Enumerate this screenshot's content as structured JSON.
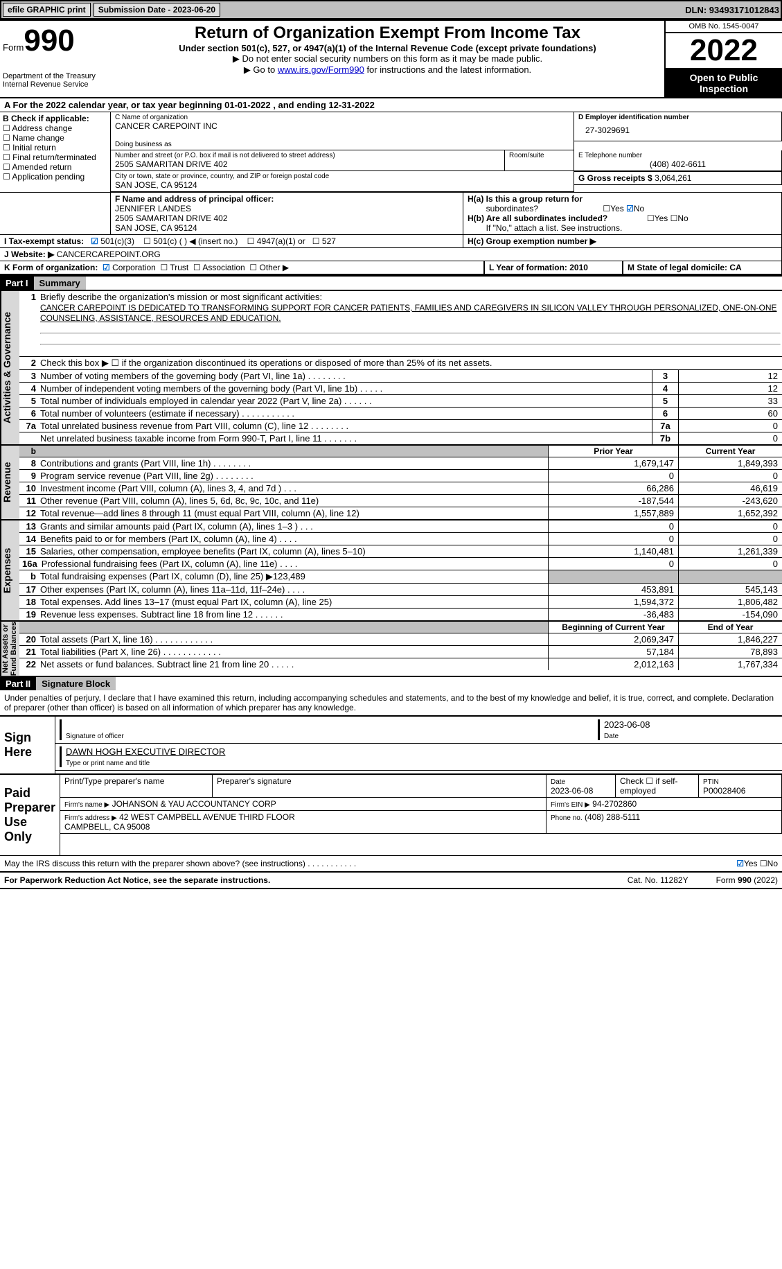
{
  "topbar": {
    "efile": "efile GRAPHIC print",
    "subdate_lbl": "Submission Date - 2023-06-20",
    "dln_lbl": "DLN: 93493171012843"
  },
  "header": {
    "form_word": "Form",
    "form_num": "990",
    "title": "Return of Organization Exempt From Income Tax",
    "under": "Under section 501(c), 527, or 4947(a)(1) of the Internal Revenue Code (except private foundations)",
    "ssn": "▶ Do not enter social security numbers on this form as it may be made public.",
    "goto_pre": "▶ Go to ",
    "goto_link": "www.irs.gov/Form990",
    "goto_post": " for instructions and the latest information.",
    "dept": "Department of the Treasury\nInternal Revenue Service",
    "omb": "OMB No. 1545-0047",
    "year": "2022",
    "public": "Open to Public Inspection"
  },
  "a": {
    "text": "A  For the 2022 calendar year, or tax year beginning 01-01-2022    , and ending 12-31-2022"
  },
  "b": {
    "hdr": "B Check if applicable:",
    "items": [
      "Address change",
      "Name change",
      "Initial return",
      "Final return/terminated",
      "Amended return",
      "Application pending"
    ]
  },
  "c": {
    "name_lbl": "C Name of organization",
    "name": "CANCER CAREPOINT INC",
    "dba_lbl": "Doing business as",
    "dba": "",
    "addr_lbl": "Number and street (or P.O. box if mail is not delivered to street address)",
    "room_lbl": "Room/suite",
    "addr": "2505 SAMARITAN DRIVE 402",
    "city_lbl": "City or town, state or province, country, and ZIP or foreign postal code",
    "city": "SAN JOSE, CA  95124"
  },
  "d": {
    "lbl": "D Employer identification number",
    "val": "27-3029691"
  },
  "e": {
    "lbl": "E Telephone number",
    "val": "(408) 402-6611"
  },
  "g": {
    "lbl": "G Gross receipts $",
    "val": "3,064,261"
  },
  "f": {
    "lbl": "F  Name and address of principal officer:",
    "name": "JENNIFER LANDES",
    "addr1": "2505 SAMARITAN DRIVE 402",
    "addr2": "SAN JOSE, CA  95124"
  },
  "h": {
    "a": "H(a)  Is this a group return for",
    "sub": "subordinates?",
    "b": "H(b)  Are all subordinates included?",
    "note": "If \"No,\" attach a list. See instructions.",
    "c": "H(c)  Group exemption number ▶"
  },
  "i": {
    "lbl": "I    Tax-exempt status:",
    "c3": "501(c)(3)",
    "c": "501(c) (  ) ◀ (insert no.)",
    "a1": "4947(a)(1) or",
    "s527": "527"
  },
  "j": {
    "lbl": "J   Website: ▶ ",
    "val": "CANCERCAREPOINT.ORG"
  },
  "k": {
    "lbl": "K Form of organization:",
    "opts": [
      "Corporation",
      "Trust",
      "Association",
      "Other ▶"
    ]
  },
  "l": {
    "lbl": "L Year of formation: 2010"
  },
  "m": {
    "lbl": "M State of legal domicile: CA"
  },
  "p1": {
    "part": "Part I",
    "title": "Summary"
  },
  "s1": {
    "label": "Activities & Governance",
    "r1_lbl": "Briefly describe the organization's mission or most significant activities:",
    "mission": "CANCER CAREPOINT IS DEDICATED TO TRANSFORMING SUPPORT FOR CANCER PATIENTS, FAMILIES AND CAREGIVERS IN SILICON VALLEY THROUGH PERSONALIZED, ONE-ON-ONE COUNSELING, ASSISTANCE, RESOURCES AND EDUCATION.",
    "r2": "Check this box ▶ ☐  if the organization discontinued its operations or disposed of more than 25% of its net assets.",
    "rows": [
      {
        "n": "3",
        "d": "Number of voting members of the governing body (Part VI, line 1a)   .     .     .     .     .     .     .     .",
        "b": "3",
        "v": "12"
      },
      {
        "n": "4",
        "d": "Number of independent voting members of the governing body (Part VI, line 1b)   .     .     .     .     .",
        "b": "4",
        "v": "12"
      },
      {
        "n": "5",
        "d": "Total number of individuals employed in calendar year 2022 (Part V, line 2a)   .     .     .     .     .     .",
        "b": "5",
        "v": "33"
      },
      {
        "n": "6",
        "d": "Total number of volunteers (estimate if necessary)     .     .     .     .     .     .     .     .     .     .     .",
        "b": "6",
        "v": "60"
      },
      {
        "n": "7a",
        "d": "Total unrelated business revenue from Part VIII, column (C), line 12   .     .     .     .     .     .     .     .",
        "b": "7a",
        "v": "0"
      },
      {
        "n": "",
        "d": "Net unrelated business taxable income from Form 990-T, Part I, line 11   .     .     .     .     .     .     .",
        "b": "7b",
        "v": "0"
      }
    ]
  },
  "colhdr": {
    "py": "Prior Year",
    "cy": "Current Year",
    "bcy": "Beginning of Current Year",
    "eoy": "End of Year"
  },
  "rev": {
    "label": "Revenue",
    "rows": [
      {
        "n": "8",
        "d": "Contributions and grants (Part VIII, line 1h)   .     .     .     .     .     .     .     .",
        "py": "1,679,147",
        "cy": "1,849,393"
      },
      {
        "n": "9",
        "d": "Program service revenue (Part VIII, line 2g)   .     .     .     .     .     .     .     .",
        "py": "0",
        "cy": "0"
      },
      {
        "n": "10",
        "d": "Investment income (Part VIII, column (A), lines 3, 4, and 7d )   .     .     .",
        "py": "66,286",
        "cy": "46,619"
      },
      {
        "n": "11",
        "d": "Other revenue (Part VIII, column (A), lines 5, 6d, 8c, 9c, 10c, and 11e)",
        "py": "-187,544",
        "cy": "-243,620"
      },
      {
        "n": "12",
        "d": "Total revenue—add lines 8 through 11 (must equal Part VIII, column (A), line 12)",
        "py": "1,557,889",
        "cy": "1,652,392"
      }
    ]
  },
  "exp": {
    "label": "Expenses",
    "rows": [
      {
        "n": "13",
        "d": "Grants and similar amounts paid (Part IX, column (A), lines 1–3 )   .     .     .",
        "py": "0",
        "cy": "0"
      },
      {
        "n": "14",
        "d": "Benefits paid to or for members (Part IX, column (A), line 4)   .     .     .     .",
        "py": "0",
        "cy": "0"
      },
      {
        "n": "15",
        "d": "Salaries, other compensation, employee benefits (Part IX, column (A), lines 5–10)",
        "py": "1,140,481",
        "cy": "1,261,339"
      },
      {
        "n": "16a",
        "d": "Professional fundraising fees (Part IX, column (A), line 11e)   .     .     .     .",
        "py": "0",
        "cy": "0"
      },
      {
        "n": "b",
        "d": "Total fundraising expenses (Part IX, column (D), line 25) ▶123,489",
        "py": "",
        "cy": "",
        "gray": true
      },
      {
        "n": "17",
        "d": "Other expenses (Part IX, column (A), lines 11a–11d, 11f–24e)   .     .     .     .",
        "py": "453,891",
        "cy": "545,143"
      },
      {
        "n": "18",
        "d": "Total expenses. Add lines 13–17 (must equal Part IX, column (A), line 25)",
        "py": "1,594,372",
        "cy": "1,806,482"
      },
      {
        "n": "19",
        "d": "Revenue less expenses. Subtract line 18 from line 12   .     .     .     .     .     .",
        "py": "-36,483",
        "cy": "-154,090"
      }
    ]
  },
  "na": {
    "label": "Net Assets or\nFund Balances",
    "rows": [
      {
        "n": "20",
        "d": "Total assets (Part X, line 16)   .     .     .     .     .     .     .     .     .     .     .     .",
        "py": "2,069,347",
        "cy": "1,846,227"
      },
      {
        "n": "21",
        "d": "Total liabilities (Part X, line 26)   .     .     .     .     .     .     .     .     .     .     .     .",
        "py": "57,184",
        "cy": "78,893"
      },
      {
        "n": "22",
        "d": "Net assets or fund balances. Subtract line 21 from line 20   .     .     .     .     .",
        "py": "2,012,163",
        "cy": "1,767,334"
      }
    ]
  },
  "p2": {
    "part": "Part II",
    "title": "Signature Block"
  },
  "sig": {
    "decl": "Under penalties of perjury, I declare that I have examined this return, including accompanying schedules and statements, and to the best of my knowledge and belief, it is true, correct, and complete. Declaration of preparer (other than officer) is based on all information of which preparer has any knowledge.",
    "here": "Sign Here",
    "sig_of": "Signature of officer",
    "date1": "2023-06-08",
    "date_lbl": "Date",
    "name": "DAWN HOGH  EXECUTIVE DIRECTOR",
    "name_lbl": "Type or print name and title"
  },
  "prep": {
    "label": "Paid Preparer Use Only",
    "h1": "Print/Type preparer's name",
    "h2": "Preparer's signature",
    "h3_lbl": "Date",
    "h3": "2023-06-08",
    "h4": "Check ☐ if self-employed",
    "h5_lbl": "PTIN",
    "h5": "P00028406",
    "firm_lbl": "Firm's name    ▶",
    "firm": "JOHANSON & YAU ACCOUNTANCY CORP",
    "ein_lbl": "Firm's EIN ▶",
    "ein": "94-2702860",
    "addr_lbl": "Firm's address ▶",
    "addr": "42 WEST CAMPBELL AVENUE THIRD FLOOR\nCAMPBELL, CA  95008",
    "phone_lbl": "Phone no.",
    "phone": "(408) 288-5111"
  },
  "footer": {
    "q": "May the IRS discuss this return with the preparer shown above? (see instructions)   .     .     .     .     .     .     .     .     .     .     .",
    "yes": "Yes",
    "no": "No",
    "pra": "For Paperwork Reduction Act Notice, see the separate instructions.",
    "cat": "Cat. No. 11282Y",
    "form": "Form 990 (2022)"
  }
}
